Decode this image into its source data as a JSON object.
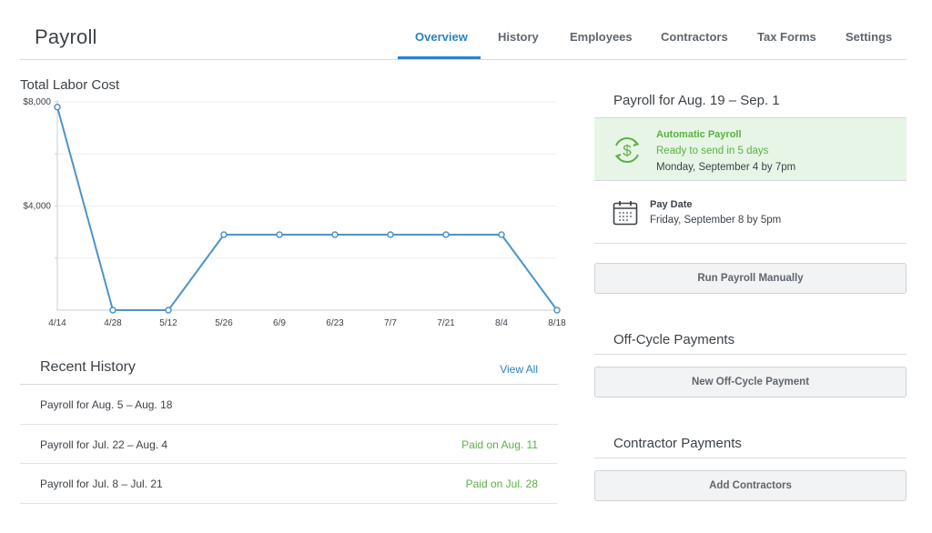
{
  "header": {
    "title": "Payroll",
    "tabs": [
      {
        "label": "Overview",
        "active": true
      },
      {
        "label": "History",
        "active": false
      },
      {
        "label": "Employees",
        "active": false
      },
      {
        "label": "Contractors",
        "active": false
      },
      {
        "label": "Tax Forms",
        "active": false
      },
      {
        "label": "Settings",
        "active": false
      }
    ]
  },
  "chart_data": {
    "type": "line",
    "title": "Total Labor Cost",
    "x": [
      "4/14",
      "4/28",
      "5/12",
      "5/26",
      "6/9",
      "6/23",
      "7/7",
      "7/21",
      "8/4",
      "8/18"
    ],
    "series": [
      {
        "values": [
          7800,
          0,
          0,
          2900,
          2900,
          2900,
          2900,
          2900,
          2900,
          0
        ]
      }
    ],
    "y_ticks": [
      "$8,000",
      "$4,000"
    ],
    "ylim": [
      0,
      8000
    ],
    "grid": true,
    "color": "#4e93c9"
  },
  "history": {
    "title": "Recent History",
    "view_all": "View All",
    "rows": [
      {
        "label": "Payroll for Aug. 5 – Aug. 18",
        "status": ""
      },
      {
        "label": "Payroll for Jul. 22 – Aug. 4",
        "status": "Paid on Aug. 11"
      },
      {
        "label": "Payroll for Jul. 8 – Jul. 21",
        "status": "Paid on Jul. 28"
      }
    ]
  },
  "payroll_panel": {
    "title": "Payroll for Aug. 19 – Sep. 1",
    "automatic": {
      "title": "Automatic Payroll",
      "subtitle": "Ready to send in 5 days",
      "when": "Monday, September 4 by 7pm",
      "icon": "dollar-refresh-icon"
    },
    "pay_date": {
      "title": "Pay Date",
      "when": "Friday, September 8 by 5pm",
      "icon": "calendar-icon"
    },
    "run_manually": "Run Payroll Manually"
  },
  "off_cycle": {
    "title": "Off-Cycle Payments",
    "button": "New Off-Cycle Payment"
  },
  "contractor_payments": {
    "title": "Contractor Payments",
    "button": "Add Contractors"
  },
  "colors": {
    "accent": "#2b82c4",
    "success": "#5bb043",
    "success_bg": "#e6f5e6"
  }
}
